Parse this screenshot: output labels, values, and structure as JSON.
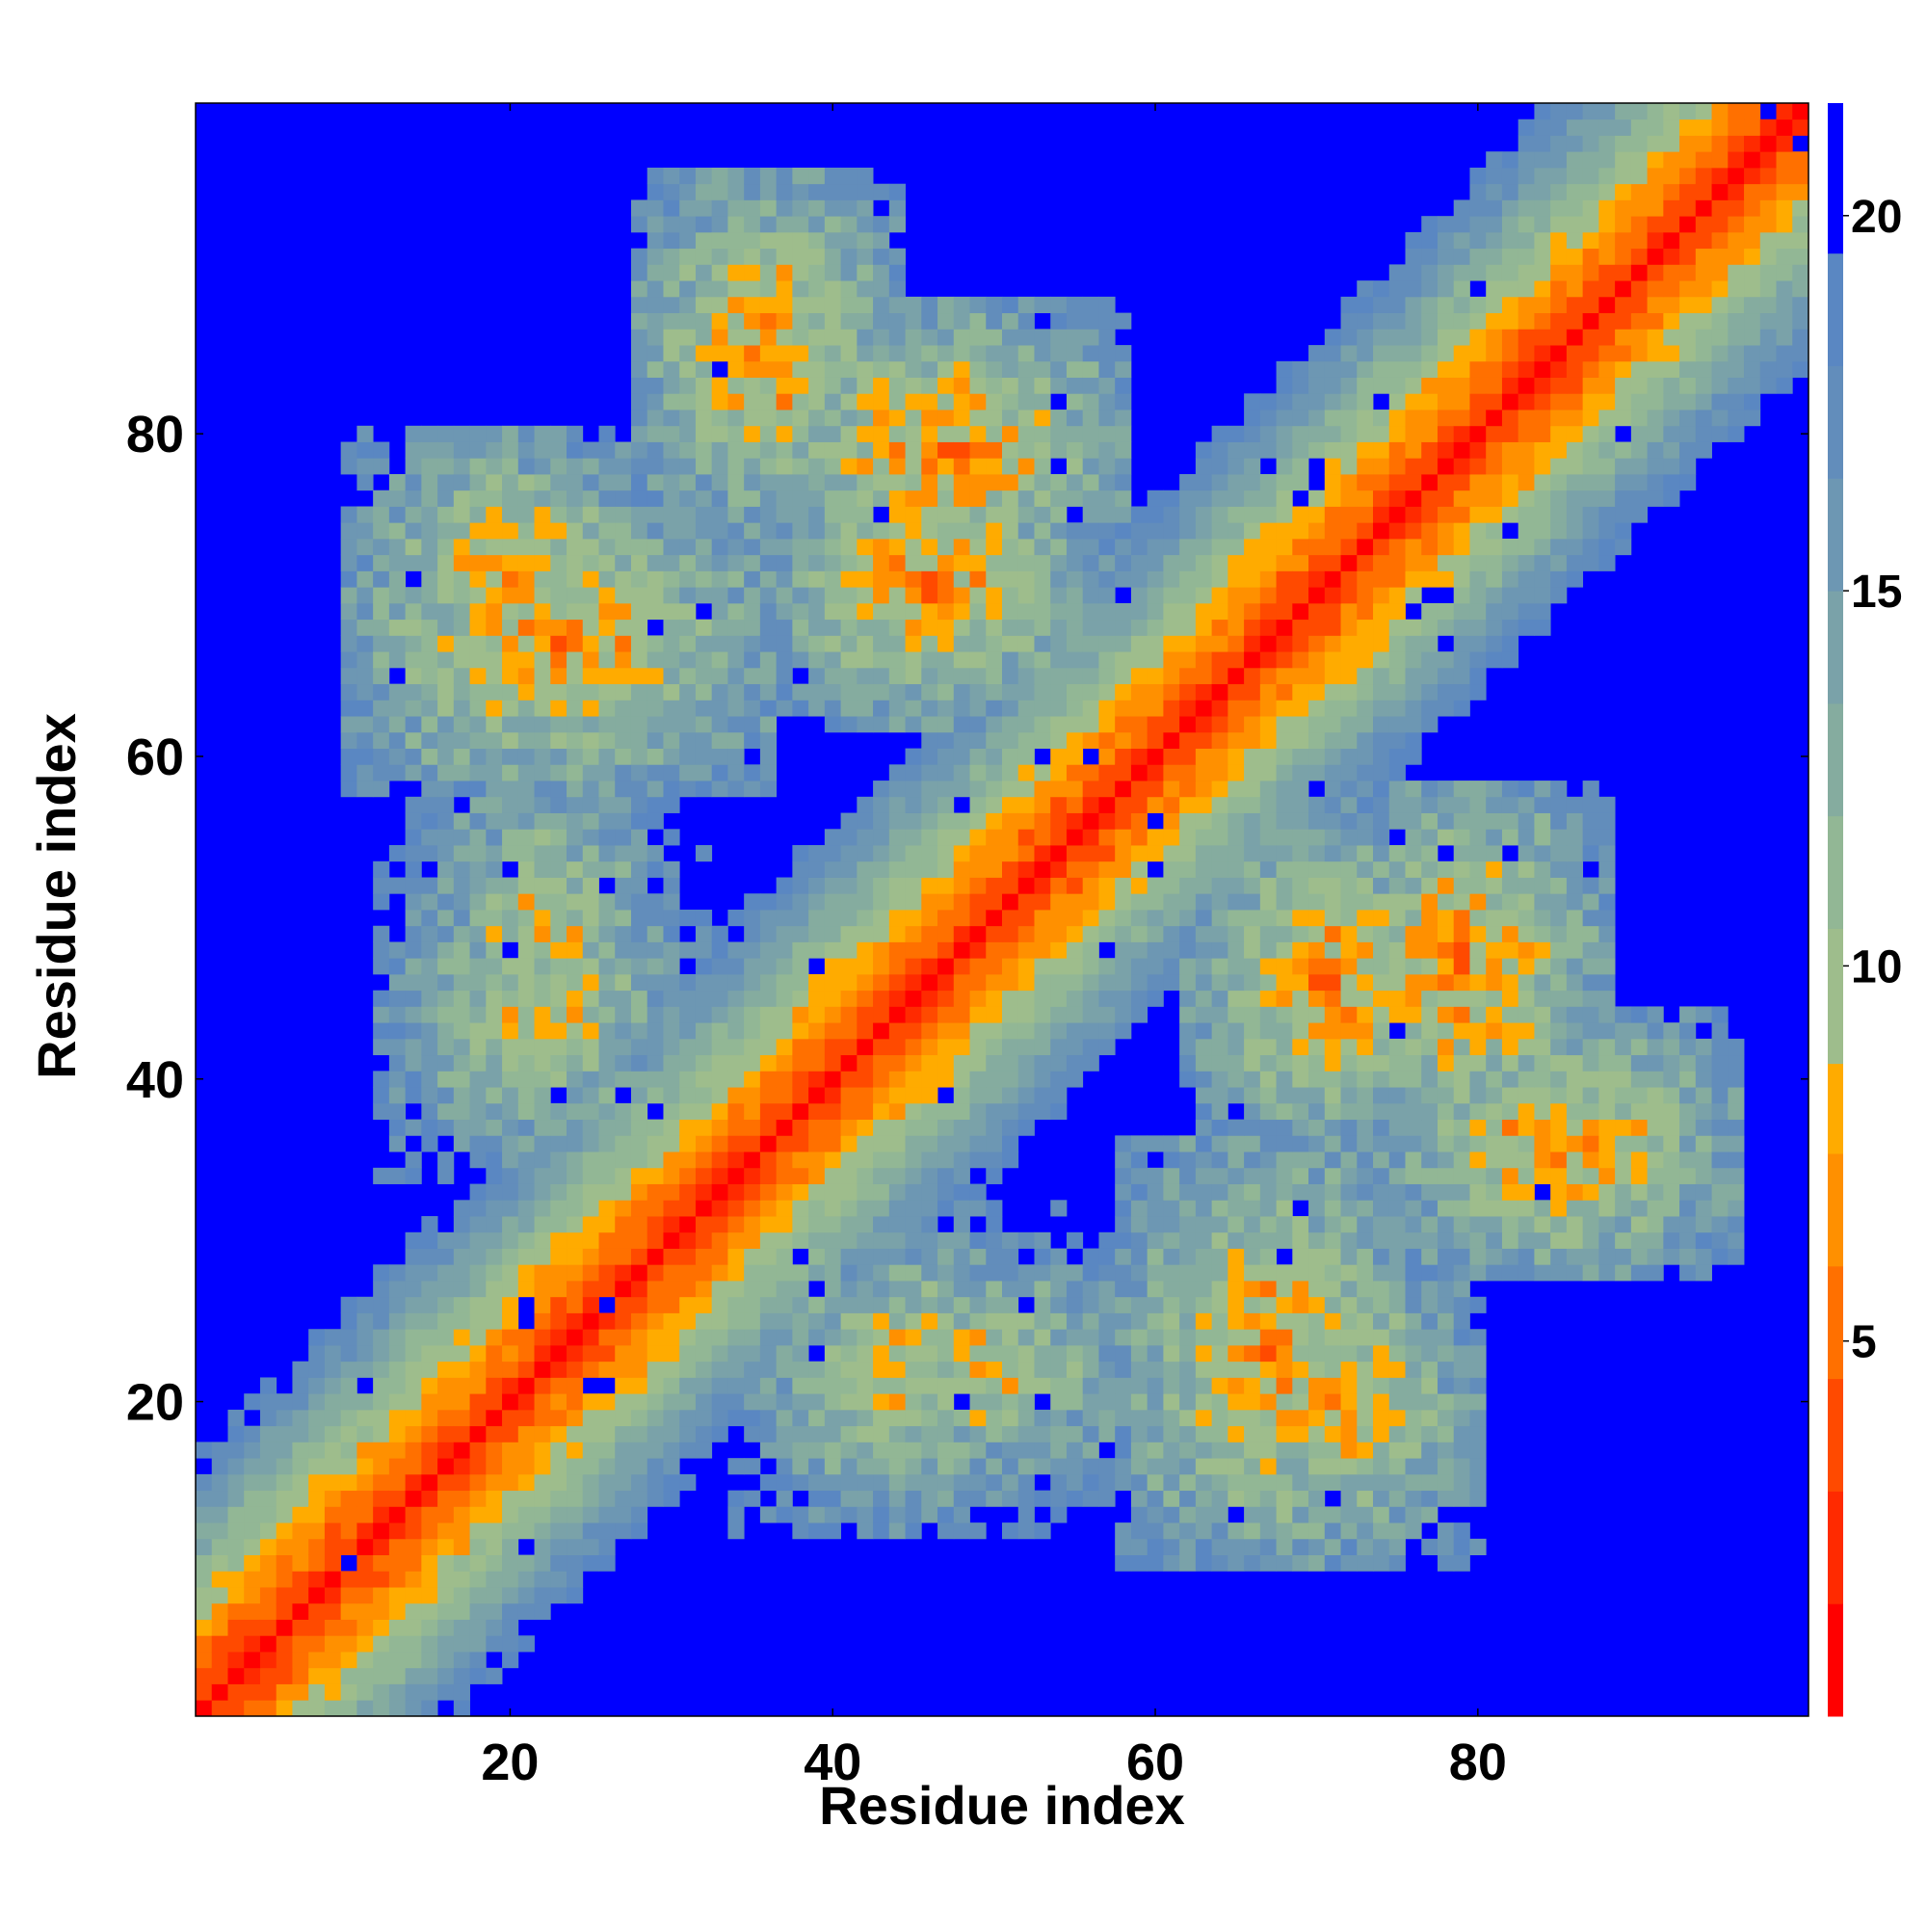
{
  "chart_data": {
    "type": "heatmap",
    "title": "",
    "xlabel": "Residue index",
    "ylabel": "Residue index",
    "n_residues": 100,
    "x_range": [
      1,
      100
    ],
    "y_range": [
      1,
      100
    ],
    "x_ticks": [
      20,
      40,
      60,
      80
    ],
    "y_ticks": [
      20,
      40,
      60,
      80
    ],
    "colorbar": {
      "range": [
        0,
        21.5
      ],
      "ticks": [
        5,
        10,
        15,
        20
      ],
      "levels": [
        {
          "upper": 1.5,
          "color": "#ff0000"
        },
        {
          "upper": 3.0,
          "color": "#ff2a00"
        },
        {
          "upper": 4.5,
          "color": "#ff4a00"
        },
        {
          "upper": 6.0,
          "color": "#ff7000"
        },
        {
          "upper": 7.5,
          "color": "#ff9000"
        },
        {
          "upper": 8.7,
          "color": "#ffab00"
        },
        {
          "upper": 10.5,
          "color": "#9ebd8c"
        },
        {
          "upper": 12.0,
          "color": "#92b795"
        },
        {
          "upper": 13.5,
          "color": "#85ac9f"
        },
        {
          "upper": 15.0,
          "color": "#7aa2a9"
        },
        {
          "upper": 16.5,
          "color": "#6d97b3"
        },
        {
          "upper": 18.0,
          "color": "#628dbb"
        },
        {
          "upper": 19.5,
          "color": "#5a87c2"
        },
        {
          "upper": 21.5,
          "color": "#0000ff"
        }
      ]
    },
    "cutoff_color": "#0000ff",
    "description_values": {
      "diagonal_distance": 0,
      "cutoff_distance": 20,
      "contact_blocks": [
        {
          "x": [
            10,
            36
          ],
          "y": [
            58,
            76
          ],
          "min_distance": 6
        },
        {
          "x": [
            36,
            58
          ],
          "y": [
            70,
            88
          ],
          "min_distance": 6
        },
        {
          "x": [
            62,
            80
          ],
          "y": [
            36,
            56
          ],
          "min_distance": 6
        },
        {
          "x": [
            74,
            96
          ],
          "y": [
            28,
            44
          ],
          "min_distance": 6
        },
        {
          "x": [
            12,
            32
          ],
          "y": [
            34,
            54
          ],
          "min_distance": 8
        },
        {
          "x": [
            38,
            60
          ],
          "y": [
            14,
            30
          ],
          "min_distance": 8
        },
        {
          "x": [
            62,
            80
          ],
          "y": [
            10,
            30
          ],
          "min_distance": 7
        },
        {
          "x": [
            2,
            12
          ],
          "y": [
            2,
            12
          ],
          "min_distance": 6
        }
      ]
    }
  }
}
